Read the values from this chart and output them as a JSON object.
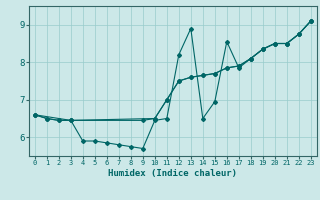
{
  "xlabel": "Humidex (Indice chaleur)",
  "bg_color": "#cce8e8",
  "grid_color": "#99cccc",
  "line_color": "#006666",
  "xlim": [
    -0.5,
    23.5
  ],
  "ylim": [
    5.5,
    9.5
  ],
  "yticks": [
    6,
    7,
    8,
    9
  ],
  "xticks": [
    0,
    1,
    2,
    3,
    4,
    5,
    6,
    7,
    8,
    9,
    10,
    11,
    12,
    13,
    14,
    15,
    16,
    17,
    18,
    19,
    20,
    21,
    22,
    23
  ],
  "series1_x": [
    0,
    1,
    2,
    3,
    4,
    5,
    6,
    7,
    8,
    9,
    10,
    11,
    12,
    13,
    14,
    15,
    16,
    17,
    18,
    19,
    20,
    21,
    22,
    23
  ],
  "series1_y": [
    6.6,
    6.5,
    6.45,
    6.45,
    5.9,
    5.9,
    5.85,
    5.8,
    5.75,
    5.7,
    6.45,
    6.5,
    8.2,
    8.9,
    6.5,
    6.95,
    8.55,
    7.85,
    8.1,
    8.35,
    8.5,
    8.5,
    8.75,
    9.1
  ],
  "series2_x": [
    0,
    1,
    2,
    3,
    9,
    10,
    11,
    12,
    13,
    14,
    15,
    16,
    17,
    18,
    19,
    20,
    21,
    22,
    23
  ],
  "series2_y": [
    6.6,
    6.5,
    6.45,
    6.45,
    6.45,
    6.5,
    7.0,
    7.5,
    7.6,
    7.65,
    7.7,
    7.85,
    7.9,
    8.1,
    8.35,
    8.5,
    8.5,
    8.75,
    9.1
  ],
  "series3_x": [
    0,
    3,
    10,
    11,
    12,
    13,
    14,
    15,
    16,
    17,
    18,
    19,
    20,
    21,
    22,
    23
  ],
  "series3_y": [
    6.6,
    6.45,
    6.5,
    7.0,
    7.5,
    7.6,
    7.65,
    7.7,
    7.85,
    7.9,
    8.1,
    8.35,
    8.5,
    8.5,
    8.75,
    9.1
  ]
}
